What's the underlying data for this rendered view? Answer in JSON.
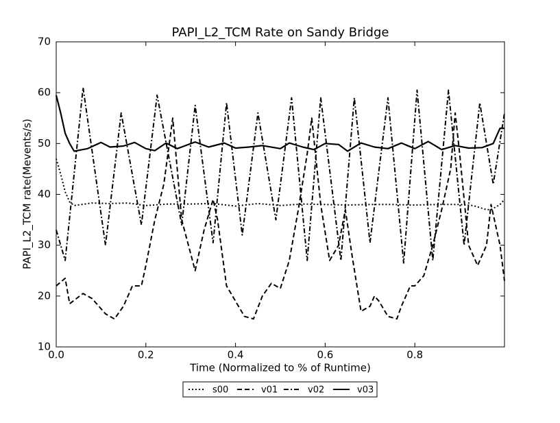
{
  "chart_data": {
    "type": "line",
    "title": "PAPI_L2_TCM Rate on Sandy Bridge",
    "x_label": "Time (Normalized to % of Runtime)",
    "y_label": "PAPI_L2_TCM rate(Mevents/s)",
    "xlim": [
      0,
      1
    ],
    "ylim": [
      10,
      70
    ],
    "xticks": [
      {
        "value": 0,
        "label": "0.0"
      },
      0.2,
      0.4,
      0.6,
      0.8
    ],
    "yticks": [
      10,
      20,
      30,
      40,
      50,
      60,
      70
    ],
    "legend": "bottom",
    "series": [
      {
        "name": "s00",
        "color": "#000000",
        "dash": "dotted",
        "x": [
          0,
          0.01,
          0.02,
          0.03,
          0.04,
          0.08,
          0.12,
          0.16,
          0.2,
          0.25,
          0.3,
          0.35,
          0.4,
          0.45,
          0.5,
          0.55,
          0.6,
          0.65,
          0.7,
          0.75,
          0.8,
          0.85,
          0.9,
          0.93,
          0.96,
          0.97,
          0.99,
          1.0
        ],
        "values": [
          47,
          44,
          40.5,
          38.5,
          37.8,
          38.3,
          38.2,
          38.3,
          37.8,
          38.1,
          38.1,
          38.2,
          37.7,
          38.2,
          37.8,
          38.1,
          38,
          37.9,
          38,
          38,
          37.9,
          38,
          38,
          37.8,
          37,
          37,
          38,
          39
        ]
      },
      {
        "name": "v01",
        "color": "#000000",
        "dash": "dashed",
        "x": [
          0,
          0.02,
          0.03,
          0.06,
          0.08,
          0.11,
          0.13,
          0.15,
          0.17,
          0.19,
          0.2,
          0.22,
          0.24,
          0.26,
          0.28,
          0.31,
          0.33,
          0.35,
          0.36,
          0.38,
          0.4,
          0.42,
          0.44,
          0.46,
          0.48,
          0.5,
          0.52,
          0.54,
          0.56,
          0.57,
          0.59,
          0.61,
          0.63,
          0.645,
          0.66,
          0.68,
          0.7,
          0.71,
          0.72,
          0.74,
          0.76,
          0.77,
          0.79,
          0.8,
          0.82,
          0.84,
          0.86,
          0.88,
          0.89,
          0.9,
          0.92,
          0.94,
          0.96,
          0.97,
          0.99,
          1.0
        ],
        "values": [
          22,
          23.5,
          18.5,
          20.5,
          19.5,
          16.5,
          15.5,
          18,
          22,
          22,
          26,
          35,
          42,
          55,
          35,
          25,
          33,
          39,
          35,
          22,
          19,
          16,
          15.5,
          20,
          22.5,
          21.5,
          27,
          37,
          48,
          55,
          38,
          27,
          30,
          37,
          28,
          17,
          18,
          20,
          19,
          16,
          15.5,
          18,
          22,
          22,
          24,
          30,
          37,
          45,
          56,
          48,
          30,
          26,
          30,
          38,
          30,
          23
        ]
      },
      {
        "name": "v02",
        "color": "#000000",
        "dash": "dashdot",
        "x": [
          0,
          0.02,
          0.06,
          0.11,
          0.145,
          0.19,
          0.225,
          0.28,
          0.31,
          0.35,
          0.38,
          0.415,
          0.45,
          0.49,
          0.525,
          0.56,
          0.59,
          0.635,
          0.665,
          0.7,
          0.74,
          0.775,
          0.805,
          0.84,
          0.875,
          0.91,
          0.945,
          0.975,
          1.0
        ],
        "values": [
          33,
          27,
          61,
          30,
          56,
          34,
          59.5,
          34,
          57.5,
          30.5,
          58,
          32,
          56,
          35,
          59,
          27,
          59,
          27,
          59,
          30.5,
          59,
          26.5,
          60.5,
          27,
          60.5,
          30,
          58,
          42,
          56
        ]
      },
      {
        "name": "v03",
        "color": "#000000",
        "dash": "solid",
        "x": [
          0,
          0.01,
          0.02,
          0.03,
          0.04,
          0.07,
          0.1,
          0.12,
          0.15,
          0.175,
          0.2,
          0.22,
          0.245,
          0.27,
          0.31,
          0.34,
          0.375,
          0.4,
          0.43,
          0.46,
          0.5,
          0.52,
          0.55,
          0.575,
          0.6,
          0.63,
          0.65,
          0.68,
          0.71,
          0.74,
          0.77,
          0.8,
          0.83,
          0.86,
          0.89,
          0.92,
          0.95,
          0.975,
          0.99,
          1.0
        ],
        "values": [
          59.5,
          56,
          52,
          50,
          48.5,
          49,
          50.2,
          49.3,
          49.5,
          50.2,
          49,
          48.6,
          50.1,
          49,
          50.3,
          49.3,
          50.1,
          49.1,
          49.3,
          49.6,
          49,
          50.1,
          49.3,
          48.8,
          50,
          49.8,
          48.5,
          50.1,
          49.3,
          49,
          50.1,
          49,
          50.4,
          48.8,
          49.6,
          49.1,
          49.2,
          50,
          53,
          53
        ]
      }
    ]
  }
}
